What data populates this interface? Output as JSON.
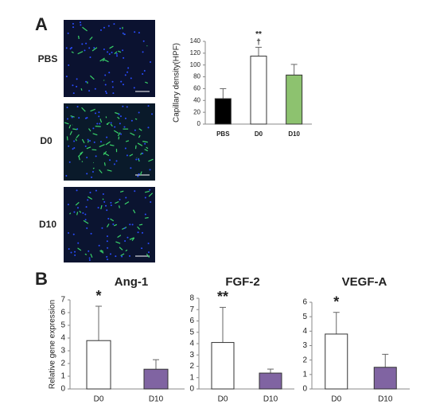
{
  "panel_labels": [
    "A",
    "B"
  ],
  "image_labels": [
    "PBS",
    "D0",
    "D10"
  ],
  "chart_data": [
    {
      "type": "bar",
      "y_label": "Capillary density(HPF)",
      "categories": [
        "PBS",
        "D0",
        "D10"
      ],
      "values": [
        43,
        115,
        83
      ],
      "errors": [
        17,
        15,
        18
      ],
      "colors": [
        "#000000",
        "#ffffff",
        "#8dc26f"
      ],
      "ylim": [
        0,
        140
      ],
      "yticks": [
        0,
        20,
        40,
        60,
        80,
        100,
        120,
        140
      ],
      "annotations": [
        {
          "text": "**",
          "category": "D0"
        },
        {
          "text": "†",
          "category": "D0"
        }
      ]
    },
    {
      "type": "bar",
      "title": "Ang-1",
      "y_label": "Relative gene expression",
      "categories": [
        "D0",
        "D10"
      ],
      "values": [
        3.8,
        1.55
      ],
      "errors": [
        2.7,
        0.75
      ],
      "colors": [
        "#ffffff",
        "#8064a2"
      ],
      "ylim": [
        0,
        7
      ],
      "yticks": [
        0,
        1,
        2,
        3,
        4,
        5,
        6,
        7
      ],
      "annotations": [
        {
          "text": "*",
          "category": "D0"
        }
      ]
    },
    {
      "type": "bar",
      "title": "FGF-2",
      "categories": [
        "D0",
        "D10"
      ],
      "values": [
        4.1,
        1.4
      ],
      "errors": [
        3.1,
        0.35
      ],
      "colors": [
        "#ffffff",
        "#8064a2"
      ],
      "ylim": [
        0,
        8
      ],
      "yticks": [
        0,
        1,
        2,
        3,
        4,
        5,
        6,
        7,
        8
      ],
      "annotations": [
        {
          "text": "**",
          "category": "D0"
        }
      ]
    },
    {
      "type": "bar",
      "title": "VEGF-A",
      "categories": [
        "D0",
        "D10"
      ],
      "values": [
        3.8,
        1.5
      ],
      "errors": [
        1.5,
        0.9
      ],
      "colors": [
        "#ffffff",
        "#8064a2"
      ],
      "ylim": [
        0,
        6
      ],
      "yticks": [
        0,
        1,
        2,
        3,
        4,
        5,
        6
      ],
      "annotations": [
        {
          "text": "*",
          "category": "D0"
        }
      ]
    }
  ]
}
